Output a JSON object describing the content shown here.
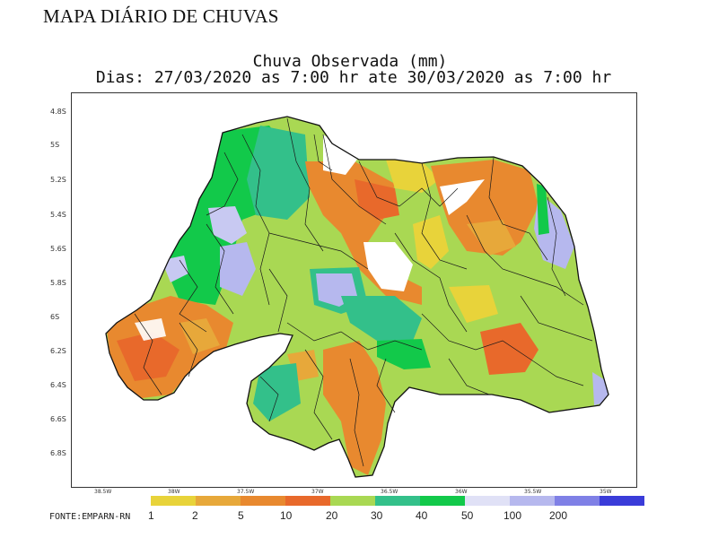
{
  "header": {
    "title": "MAPA DIÁRIO DE CHUVAS"
  },
  "map": {
    "title_line1": "Chuva Observada (mm)",
    "title_line2": "Dias: 27/03/2020 as 7:00 hr ate 30/03/2020 as 7:00 hr",
    "y_ticks": [
      "4.8S",
      "5S",
      "5.2S",
      "5.4S",
      "5.6S",
      "5.8S",
      "6S",
      "6.2S",
      "6.4S",
      "6.6S",
      "6.8S"
    ],
    "x_ticks": [
      "38.5W",
      "38W",
      "37.5W",
      "37W",
      "36.5W",
      "36W",
      "35.5W",
      "35W"
    ]
  },
  "legend": {
    "labels": [
      "1",
      "2",
      "5",
      "10",
      "20",
      "30",
      "40",
      "50",
      "100",
      "200"
    ],
    "colors": [
      "#e8d33a",
      "#e7a83a",
      "#e8892f",
      "#e8692b",
      "#a9d853",
      "#33c08a",
      "#12c94a",
      "#e0e1f6",
      "#b6b8ee",
      "#7f80e6",
      "#3a3cd9"
    ]
  },
  "source": "FONTE:EMPARN-RN"
}
